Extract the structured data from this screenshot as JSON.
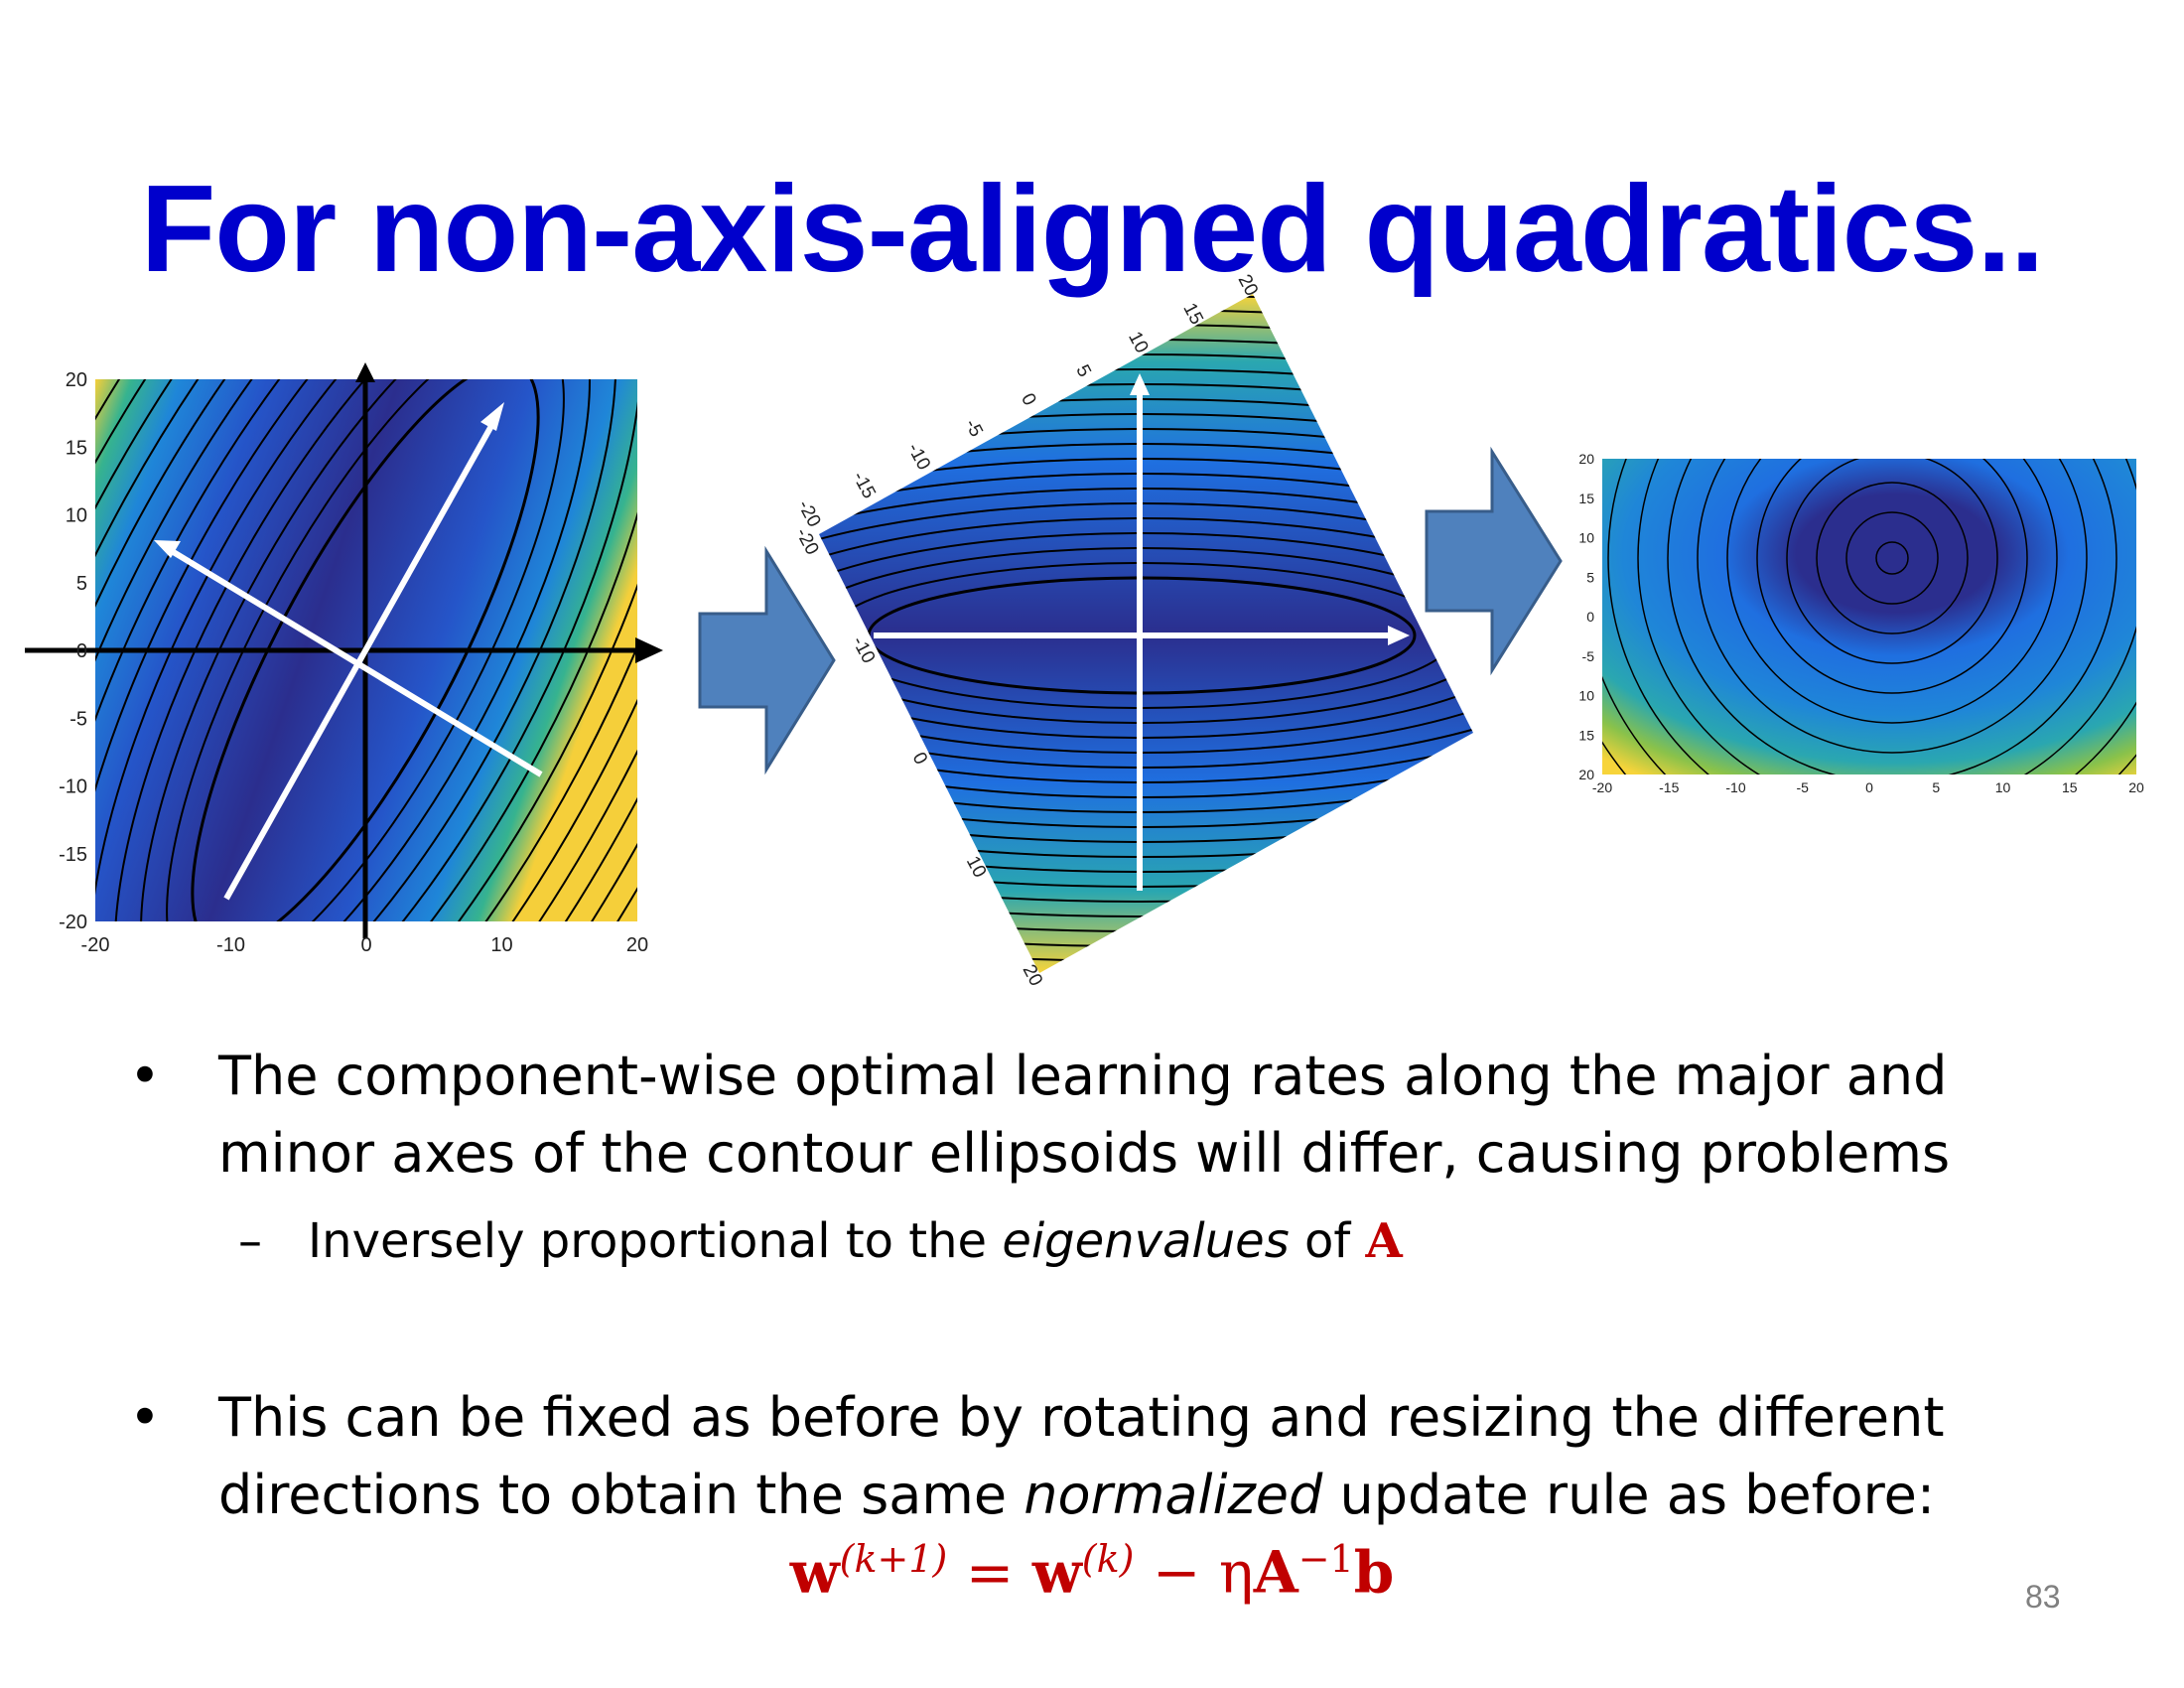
{
  "slide": {
    "title": "For non-axis-aligned quadratics..",
    "page_number": "83"
  },
  "figures": {
    "left_plot": {
      "x_ticks": [
        "-20",
        "-10",
        "0",
        "10",
        "20"
      ],
      "y_ticks": [
        "20",
        "15",
        "10",
        "5",
        "0",
        "-5",
        "-10",
        "-15",
        "-20"
      ]
    },
    "middle_plot": {
      "top_ticks": [
        "-20",
        "-15",
        "-10",
        "-5",
        "0",
        "5",
        "10",
        "15",
        "20"
      ],
      "left_ticks": [
        "-20",
        "-10",
        "0",
        "10",
        "20"
      ]
    },
    "right_plot": {
      "x_ticks": [
        "-20",
        "-15",
        "-10",
        "-5",
        "0",
        "5",
        "10",
        "15",
        "20"
      ],
      "y_ticks": [
        "20",
        "15",
        "10",
        "5",
        "0",
        "-5",
        "10",
        "15",
        "20"
      ]
    },
    "colors": {
      "contour_dark": "#2b2e8e",
      "contour_mid": "#1f6fe0",
      "contour_teal": "#2aa7b0",
      "contour_yellow": "#f7d43a",
      "arrow_fill": "#4f81bd",
      "arrow_stroke": "#385d8a"
    }
  },
  "bullets": [
    {
      "text": "The component-wise optimal learning rates along the major and minor axes of the contour ellipsoids will differ, causing problems",
      "sub": {
        "prefix": "Inversely proportional to the ",
        "italic": "eigenvalues",
        "middle": " of ",
        "symbol": "A"
      }
    },
    {
      "prefix": "This can be fixed as before by rotating and resizing the different directions to obtain the same ",
      "italic": "normalized",
      "suffix": " update rule as before:"
    }
  ],
  "formula": {
    "w1": "w",
    "sup1": "(k+1)",
    "eq": " = ",
    "w2": "w",
    "sup2": "(k)",
    "minus": " − η",
    "A": "A",
    "inv": "−1",
    "b": "b"
  }
}
